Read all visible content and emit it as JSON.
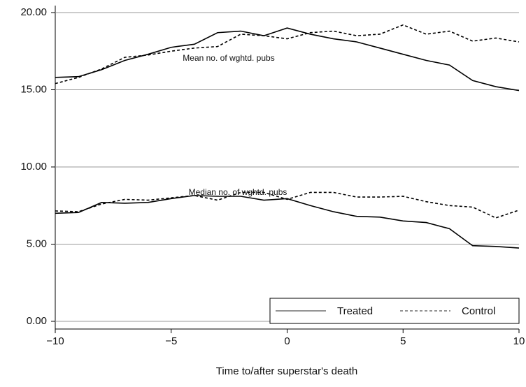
{
  "chart_data": {
    "type": "line",
    "x_label": "Time to/after superstar's death",
    "x": [
      -10,
      -9,
      -8,
      -7,
      -6,
      -5,
      -4,
      -3,
      -2,
      -1,
      0,
      1,
      2,
      3,
      4,
      5,
      6,
      7,
      8,
      9,
      10
    ],
    "annotations": [
      "Mean no. of wghtd. pubs",
      "Median no. of wghtd. pubs"
    ],
    "series": [
      {
        "name": "Treated",
        "color": "#000000",
        "dash": "solid",
        "values_mean": [
          15.8,
          15.85,
          16.3,
          16.9,
          17.3,
          17.75,
          17.95,
          18.7,
          18.8,
          18.5,
          19.0,
          18.6,
          18.3,
          18.1,
          17.7,
          17.3,
          16.9,
          16.6,
          15.6,
          15.2,
          14.95
        ],
        "values_median": [
          7.0,
          7.05,
          7.7,
          7.65,
          7.7,
          7.95,
          8.15,
          8.1,
          8.1,
          7.85,
          7.95,
          7.5,
          7.1,
          6.8,
          6.75,
          6.5,
          6.4,
          6.0,
          4.9,
          4.85,
          4.75
        ]
      },
      {
        "name": "Control",
        "color": "#000000",
        "dash": "dashed",
        "values_mean": [
          15.4,
          15.8,
          16.35,
          17.1,
          17.25,
          17.5,
          17.7,
          17.8,
          18.6,
          18.5,
          18.3,
          18.7,
          18.8,
          18.5,
          18.6,
          19.2,
          18.6,
          18.8,
          18.15,
          18.35,
          18.1
        ],
        "values_median": [
          7.15,
          7.1,
          7.6,
          7.9,
          7.85,
          8.0,
          8.15,
          7.85,
          8.35,
          8.35,
          7.9,
          8.35,
          8.35,
          8.05,
          8.05,
          8.1,
          7.75,
          7.5,
          7.4,
          6.7,
          7.2
        ]
      }
    ],
    "xlim": [
      -10,
      10
    ],
    "xticks": [
      {
        "value": -10,
        "label": "−10"
      },
      {
        "value": -5,
        "label": "−5"
      },
      0,
      5,
      10
    ],
    "ylim": [
      0,
      20
    ],
    "yticks": [
      {
        "value": 0,
        "label": "0.00"
      },
      {
        "value": 5,
        "label": "5.00"
      },
      {
        "value": 10,
        "label": "10.00"
      },
      {
        "value": 15,
        "label": "15.00"
      },
      {
        "value": 20,
        "label": "20.00"
      }
    ],
    "grid": true,
    "legend": "bottom-right"
  }
}
